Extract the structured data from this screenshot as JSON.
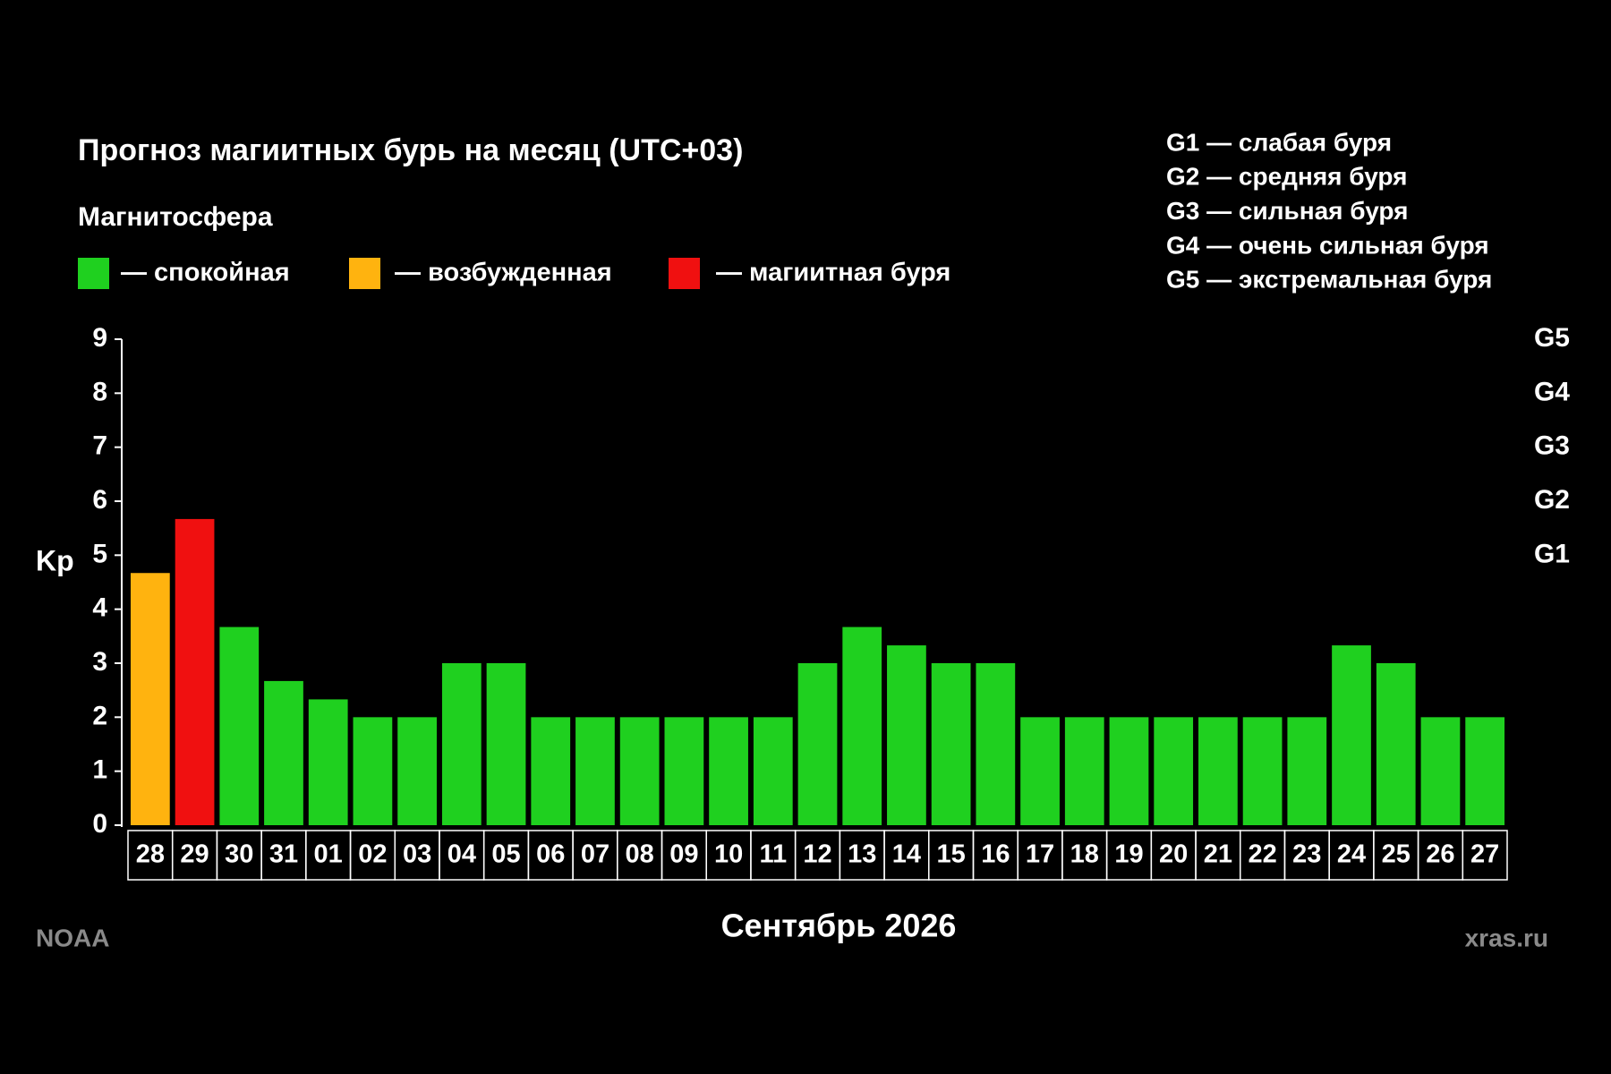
{
  "chart_data": {
    "type": "bar",
    "title": "Прогноз магиитных бурь на месяц (UTC+03)",
    "subtitle": "Магнитосфера",
    "legend": [
      {
        "label": "— спокойная",
        "color": "#1fd01f"
      },
      {
        "label": "— возбужденная",
        "color": "#ffb30f"
      },
      {
        "label": "— магиитная буря",
        "color": "#f01010"
      }
    ],
    "g_scale": [
      "G1 — слабая буря",
      "G2 — средняя буря",
      "G3 — сильная буря",
      "G4 — очень сильная буря",
      "G5 — экстремальная буря"
    ],
    "y_label": "Kp",
    "x_label": "Сентябрь 2026",
    "sources": [
      "NOAA",
      "xras.ru"
    ],
    "categories": [
      "28",
      "29",
      "30",
      "31",
      "01",
      "02",
      "03",
      "04",
      "05",
      "06",
      "07",
      "08",
      "09",
      "10",
      "11",
      "12",
      "13",
      "14",
      "15",
      "16",
      "17",
      "18",
      "19",
      "20",
      "21",
      "22",
      "23",
      "24",
      "25",
      "26",
      "27"
    ],
    "values": [
      4.67,
      5.67,
      3.67,
      2.67,
      2.33,
      2,
      2,
      3,
      3,
      2,
      2,
      2,
      2,
      2,
      2,
      3,
      3.67,
      3.33,
      3,
      3,
      2,
      2,
      2,
      2,
      2,
      2,
      2,
      3.33,
      3,
      2,
      2
    ],
    "colors": [
      "#ffb30f",
      "#f01010",
      "#1fd01f",
      "#1fd01f",
      "#1fd01f",
      "#1fd01f",
      "#1fd01f",
      "#1fd01f",
      "#1fd01f",
      "#1fd01f",
      "#1fd01f",
      "#1fd01f",
      "#1fd01f",
      "#1fd01f",
      "#1fd01f",
      "#1fd01f",
      "#1fd01f",
      "#1fd01f",
      "#1fd01f",
      "#1fd01f",
      "#1fd01f",
      "#1fd01f",
      "#1fd01f",
      "#1fd01f",
      "#1fd01f",
      "#1fd01f",
      "#1fd01f",
      "#1fd01f",
      "#1fd01f",
      "#1fd01f",
      "#1fd01f"
    ],
    "ylim": [
      0,
      9
    ],
    "yticks": [
      0,
      1,
      2,
      3,
      4,
      5,
      6,
      7,
      8,
      9
    ],
    "y2lim": [
      0,
      9
    ],
    "y2ticks": [
      {
        "value": 5,
        "label": "G1"
      },
      {
        "value": 6,
        "label": "G2"
      },
      {
        "value": 7,
        "label": "G3"
      },
      {
        "value": 8,
        "label": "G4"
      },
      {
        "value": 9,
        "label": "G5"
      }
    ]
  }
}
